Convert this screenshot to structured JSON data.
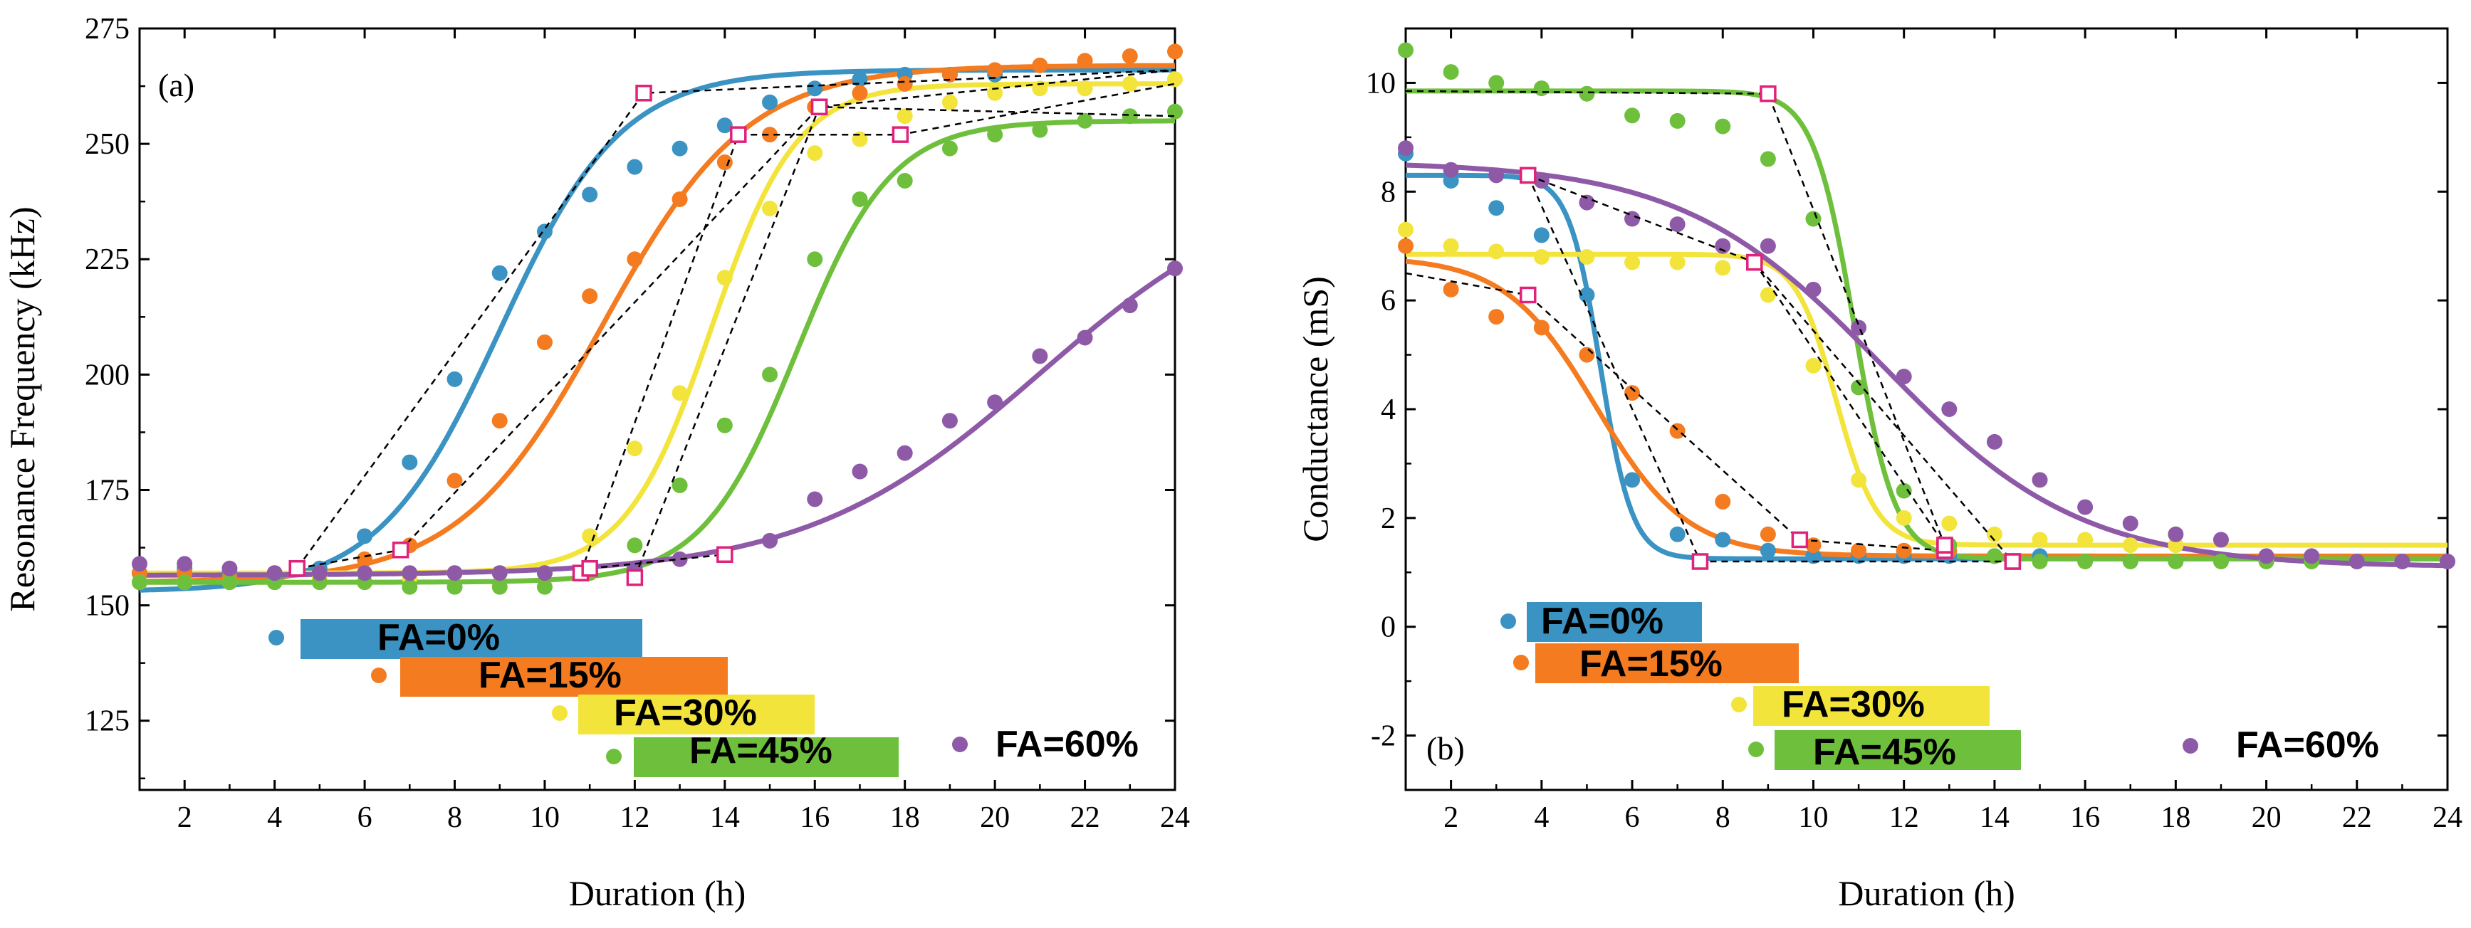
{
  "chart_data": [
    {
      "type": "scatter",
      "panel_label": "(a)",
      "xlabel": "Duration (h)",
      "ylabel": "Resonance Frequency (kHz)",
      "xlim": [
        1,
        24
      ],
      "ylim": [
        110,
        275
      ],
      "xticks": [
        2,
        4,
        6,
        8,
        10,
        12,
        14,
        16,
        18,
        20,
        22,
        24
      ],
      "yticks": [
        125,
        150,
        175,
        200,
        225,
        250,
        275
      ],
      "grid": false,
      "legend_placement": "bottom-left (staggered)",
      "series": [
        {
          "name": "FA=0%",
          "color": "#3a93c3",
          "x": [
            1,
            2,
            3,
            4,
            5,
            6,
            7,
            8,
            9,
            10,
            11,
            12,
            13,
            14,
            15,
            16,
            17,
            18,
            19,
            20
          ],
          "y": [
            157,
            158,
            157,
            156,
            158,
            165,
            181,
            199,
            222,
            231,
            239,
            245,
            249,
            254,
            259,
            262,
            264,
            265,
            265,
            265
          ],
          "fit": {
            "low": 153,
            "high": 266,
            "mid": 9.0,
            "width": 1.35
          },
          "tangent": [
            [
              4.5,
              158
            ],
            [
              12.2,
              261
            ],
            [
              24,
              266
            ]
          ]
        },
        {
          "name": "FA=15%",
          "color": "#f47b20",
          "x": [
            1,
            2,
            3,
            4,
            5,
            6,
            7,
            8,
            9,
            10,
            11,
            12,
            13,
            14,
            15,
            16,
            17,
            18,
            19,
            20,
            21,
            22,
            23,
            24
          ],
          "y": [
            157,
            157,
            156,
            157,
            157,
            160,
            163,
            177,
            190,
            207,
            217,
            225,
            238,
            246,
            252,
            258,
            261,
            263,
            265,
            266,
            267,
            268,
            269,
            270
          ],
          "fit": {
            "low": 155,
            "high": 267,
            "mid": 11.3,
            "width": 1.6
          },
          "tangent": [
            [
              4.5,
              158
            ],
            [
              6.8,
              162
            ],
            [
              16.1,
              258
            ],
            [
              24,
              266
            ]
          ]
        },
        {
          "name": "FA=30%",
          "color": "#f3e43c",
          "x": [
            1,
            2,
            3,
            4,
            5,
            6,
            7,
            8,
            9,
            10,
            11,
            12,
            13,
            14,
            15,
            16,
            17,
            18,
            19,
            20,
            21,
            22,
            23,
            24
          ],
          "y": [
            155,
            155,
            155,
            155,
            156,
            157,
            156,
            157,
            157,
            157,
            165,
            184,
            196,
            221,
            236,
            248,
            251,
            256,
            259,
            261,
            262,
            262,
            263,
            264
          ],
          "fit": {
            "low": 157,
            "high": 263,
            "mid": 13.7,
            "width": 0.95
          },
          "tangent": [
            [
              10.8,
              157
            ],
            [
              14.3,
              252
            ],
            [
              17.9,
              252
            ],
            [
              24,
              263
            ]
          ]
        },
        {
          "name": "FA=45%",
          "color": "#6ec03c",
          "x": [
            1,
            2,
            3,
            4,
            5,
            6,
            7,
            8,
            9,
            10,
            11,
            12,
            13,
            14,
            15,
            16,
            17,
            18,
            19,
            20,
            21,
            22,
            23,
            24
          ],
          "y": [
            155,
            155,
            155,
            155,
            155,
            155,
            154,
            154,
            154,
            154,
            157,
            163,
            176,
            189,
            200,
            225,
            238,
            242,
            249,
            252,
            253,
            255,
            256,
            257
          ],
          "fit": {
            "low": 155,
            "high": 255,
            "mid": 15.6,
            "width": 1.05
          },
          "tangent": [
            [
              12.0,
              156
            ],
            [
              16.1,
              258
            ],
            [
              24,
              256
            ]
          ]
        },
        {
          "name": "FA=60%",
          "color": "#8e5aa8",
          "x": [
            1,
            2,
            3,
            4,
            5,
            6,
            7,
            8,
            9,
            10,
            11,
            12,
            13,
            14,
            15,
            16,
            17,
            18,
            19,
            20,
            21,
            22,
            23,
            24
          ],
          "y": [
            159,
            159,
            158,
            157,
            157,
            157,
            157,
            157,
            157,
            157,
            158,
            158,
            160,
            161,
            164,
            173,
            179,
            183,
            190,
            194,
            204,
            208,
            215,
            223
          ],
          "fit": {
            "low": 156.5,
            "high": 244,
            "mid": 21.0,
            "width": 2.6
          },
          "tangent": [
            [
              11.0,
              158
            ],
            [
              14.0,
              161
            ]
          ]
        }
      ],
      "legend": [
        {
          "label": "FA=0%",
          "color": "#3a93c3"
        },
        {
          "label": "FA=15%",
          "color": "#f47b20"
        },
        {
          "label": "FA=30%",
          "color": "#f3e43c"
        },
        {
          "label": "FA=45%",
          "color": "#6ec03c"
        },
        {
          "label": "FA=60%",
          "color": "#8e5aa8"
        }
      ]
    },
    {
      "type": "scatter",
      "panel_label": "(b)",
      "xlabel": "Duration (h)",
      "ylabel": "Conductance (mS)",
      "xlim": [
        1,
        24
      ],
      "ylim": [
        -3,
        11
      ],
      "xticks": [
        2,
        4,
        6,
        8,
        10,
        12,
        14,
        16,
        18,
        20,
        22,
        24
      ],
      "yticks": [
        -2,
        0,
        2,
        4,
        6,
        8,
        10
      ],
      "grid": false,
      "legend_placement": "bottom-left (staggered)",
      "series": [
        {
          "name": "FA=0%",
          "color": "#3a93c3",
          "x": [
            1,
            2,
            3,
            4,
            5,
            6,
            7,
            8,
            9,
            10,
            11,
            12,
            13,
            14,
            15
          ],
          "y": [
            8.7,
            8.2,
            7.7,
            7.2,
            6.1,
            2.7,
            1.7,
            1.6,
            1.4,
            1.3,
            1.3,
            1.3,
            1.3,
            1.3,
            1.3
          ],
          "fit": {
            "high": 8.3,
            "low": 1.25,
            "mid": 5.3,
            "width": 0.35
          },
          "tangent": [
            [
              3.7,
              8.3
            ],
            [
              7.5,
              1.2
            ],
            [
              14.4,
              1.2
            ]
          ]
        },
        {
          "name": "FA=15%",
          "color": "#f47b20",
          "x": [
            1,
            2,
            3,
            4,
            5,
            6,
            7,
            8,
            9,
            10,
            11,
            12,
            13,
            14
          ],
          "y": [
            7.0,
            6.2,
            5.7,
            5.5,
            5.0,
            4.3,
            3.6,
            2.3,
            1.7,
            1.5,
            1.4,
            1.4,
            1.4,
            1.3
          ],
          "fit": {
            "high": 6.8,
            "low": 1.3,
            "mid": 5.2,
            "width": 1.0
          },
          "tangent": [
            [
              1.0,
              6.5
            ],
            [
              3.7,
              6.1
            ],
            [
              9.7,
              1.6
            ],
            [
              12.9,
              1.4
            ]
          ]
        },
        {
          "name": "FA=30%",
          "color": "#f3e43c",
          "x": [
            1,
            2,
            3,
            4,
            5,
            6,
            7,
            8,
            9,
            10,
            11,
            12,
            13,
            14,
            15,
            16,
            17,
            18
          ],
          "y": [
            7.3,
            7.0,
            6.9,
            6.8,
            6.8,
            6.7,
            6.7,
            6.6,
            6.1,
            4.8,
            2.7,
            2.0,
            1.9,
            1.7,
            1.6,
            1.6,
            1.5,
            1.5
          ],
          "fit": {
            "high": 6.85,
            "low": 1.5,
            "mid": 10.5,
            "width": 0.45
          },
          "tangent": [
            [
              8.7,
              6.7
            ],
            [
              12.9,
              1.5
            ]
          ]
        },
        {
          "name": "FA=45%",
          "color": "#6ec03c",
          "x": [
            1,
            2,
            3,
            4,
            5,
            6,
            7,
            8,
            9,
            10,
            11,
            12,
            13,
            14,
            15,
            16,
            17,
            18,
            19,
            20,
            21,
            22,
            23,
            24
          ],
          "y": [
            10.6,
            10.2,
            10.0,
            9.9,
            9.8,
            9.4,
            9.3,
            9.2,
            8.6,
            7.5,
            4.4,
            2.5,
            1.5,
            1.3,
            1.2,
            1.2,
            1.2,
            1.2,
            1.2,
            1.2,
            1.2,
            1.2,
            1.2,
            1.2
          ],
          "fit": {
            "high": 9.85,
            "low": 1.25,
            "mid": 10.9,
            "width": 0.45
          },
          "tangent": [
            [
              1.0,
              9.85
            ],
            [
              9.0,
              9.8
            ],
            [
              12.9,
              1.5
            ]
          ]
        },
        {
          "name": "FA=60%",
          "color": "#8e5aa8",
          "x": [
            1,
            2,
            3,
            4,
            5,
            6,
            7,
            8,
            9,
            10,
            11,
            12,
            13,
            14,
            15,
            16,
            17,
            18,
            19,
            20,
            21,
            22,
            23,
            24
          ],
          "y": [
            8.8,
            8.4,
            8.3,
            8.2,
            7.8,
            7.5,
            7.4,
            7.0,
            7.0,
            6.2,
            5.5,
            4.6,
            4.0,
            3.4,
            2.7,
            2.2,
            1.9,
            1.7,
            1.6,
            1.3,
            1.3,
            1.2,
            1.2,
            1.2
          ],
          "fit": {
            "high": 8.55,
            "low": 1.1,
            "mid": 11.5,
            "width": 2.2
          },
          "tangent": [
            [
              3.7,
              8.3
            ],
            [
              8.7,
              6.7
            ],
            [
              14.4,
              1.2
            ]
          ]
        }
      ],
      "legend": [
        {
          "label": "FA=0%",
          "color": "#3a93c3"
        },
        {
          "label": "FA=15%",
          "color": "#f47b20"
        },
        {
          "label": "FA=30%",
          "color": "#f3e43c"
        },
        {
          "label": "FA=45%",
          "color": "#6ec03c"
        },
        {
          "label": "FA=60%",
          "color": "#8e5aa8"
        }
      ]
    }
  ]
}
